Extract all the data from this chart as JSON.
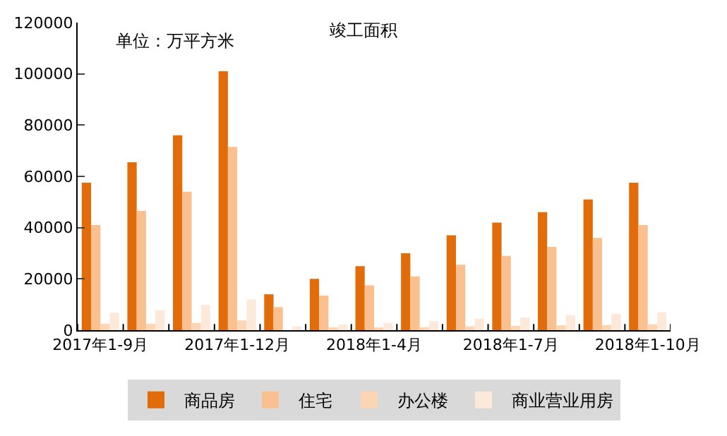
{
  "chart_data": {
    "type": "bar",
    "title": "竣工面积",
    "annotations": [
      "单位：万平方米"
    ],
    "categories": [
      "2017年1-9月",
      null,
      null,
      "2017年1-12月",
      null,
      null,
      "2018年1-4月",
      null,
      null,
      "2018年1-7月",
      null,
      null,
      "2018年1-10月"
    ],
    "series": [
      {
        "name": "商品房",
        "color": "#e36c0a",
        "values": [
          57500,
          65500,
          76000,
          101000,
          14000,
          20000,
          25000,
          30000,
          37000,
          42000,
          46000,
          51000,
          57500
        ]
      },
      {
        "name": "住宅",
        "color": "#fac090",
        "values": [
          41000,
          46500,
          54000,
          71500,
          9000,
          13500,
          17500,
          21000,
          25500,
          29000,
          32500,
          36000,
          41000
        ]
      },
      {
        "name": "办公楼",
        "color": "#fcd5b4",
        "values": [
          2500,
          2500,
          2800,
          3800,
          null,
          700,
          1000,
          1200,
          1500,
          1700,
          1900,
          2000,
          2300
        ]
      },
      {
        "name": "商业营业用房",
        "color": "#fde9d9",
        "values": [
          6800,
          7800,
          9800,
          12000,
          1500,
          2200,
          2800,
          3500,
          4500,
          5000,
          5800,
          6400,
          7000
        ]
      }
    ],
    "ylim": [
      0,
      120000
    ],
    "yticks": [
      0,
      20000,
      40000,
      60000,
      80000,
      100000,
      120000
    ],
    "legend": "bottom"
  }
}
